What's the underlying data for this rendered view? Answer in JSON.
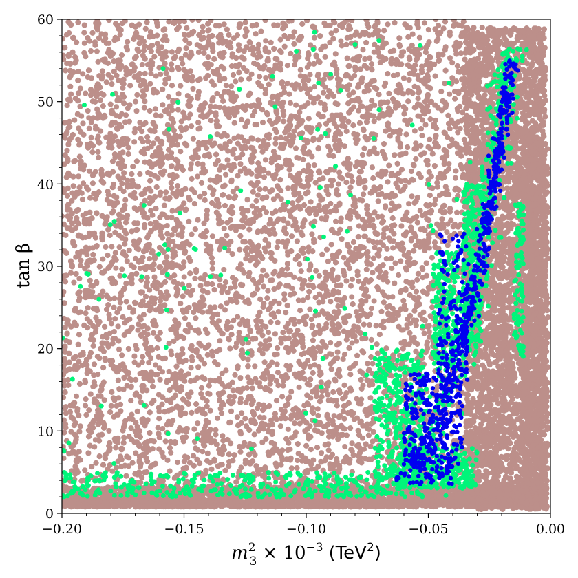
{
  "chart_data": {
    "type": "scatter",
    "title": "",
    "xlabel": {
      "main": "m",
      "sup": "2",
      "sub": "3",
      "times": "× 10",
      "exp": "−3",
      "unit_open": "(TeV",
      "unit_sup": "2",
      "unit_close": ")"
    },
    "ylabel": "tan β",
    "xlim": [
      -0.2,
      0.0
    ],
    "ylim": [
      0,
      60
    ],
    "x_ticks": [
      -0.2,
      -0.15,
      -0.1,
      -0.05,
      0.0
    ],
    "x_tick_labels": [
      "−0.20",
      "−0.15",
      "−0.10",
      "−0.05",
      "0.00"
    ],
    "y_ticks": [
      0,
      10,
      20,
      30,
      40,
      50,
      60
    ],
    "y_tick_labels": [
      "0",
      "10",
      "20",
      "30",
      "40",
      "50",
      "60"
    ],
    "grid": false,
    "legend": "none",
    "series": [
      {
        "color": "#bc8f8a",
        "layer": "background",
        "regions": [
          {
            "kind": "uniform",
            "x": [
              -0.2,
              -0.035
            ],
            "y": [
              3,
              60
            ],
            "count": 5200
          },
          {
            "kind": "band",
            "x": [
              -0.2,
              -0.002
            ],
            "y": [
              0.8,
              3.2
            ],
            "count": 2400
          },
          {
            "kind": "uniform",
            "x": [
              -0.035,
              -0.002
            ],
            "y": [
              0.5,
              59
            ],
            "count": 3800
          },
          {
            "kind": "uniform",
            "x": [
              -0.012,
              -0.001
            ],
            "y": [
              0.5,
              45
            ],
            "count": 900
          }
        ]
      },
      {
        "color": "#00f57a",
        "layer": "middle",
        "regions": [
          {
            "kind": "band",
            "x": [
              -0.2,
              -0.04
            ],
            "y": [
              2.0,
              5.0
            ],
            "count": 360
          },
          {
            "kind": "uniform",
            "x": [
              -0.2,
              -0.03
            ],
            "y": [
              5,
              60
            ],
            "count": 90
          },
          {
            "kind": "uniform",
            "x": [
              -0.072,
              -0.052
            ],
            "y": [
              4,
              20
            ],
            "count": 320
          },
          {
            "kind": "uniform",
            "x": [
              -0.062,
              -0.03
            ],
            "y": [
              3,
              8
            ],
            "count": 260
          },
          {
            "kind": "uniform",
            "x": [
              -0.048,
              -0.038
            ],
            "y": [
              18,
              32
            ],
            "count": 180
          },
          {
            "kind": "uniform",
            "x": [
              -0.036,
              -0.028
            ],
            "y": [
              20,
              40
            ],
            "count": 170
          },
          {
            "kind": "curve",
            "x": [
              -0.072,
              -0.016
            ],
            "ymax": 56.5,
            "width": 0.009,
            "count": 380
          },
          {
            "kind": "uniform",
            "x": [
              -0.015,
              -0.011
            ],
            "y": [
              18,
              38
            ],
            "count": 90
          }
        ]
      },
      {
        "color": "#0000f0",
        "layer": "top",
        "regions": [
          {
            "kind": "curve",
            "x": [
              -0.072,
              -0.016
            ],
            "ymax": 55,
            "width": 0.0045,
            "count": 430
          },
          {
            "kind": "uniform",
            "x": [
              -0.06,
              -0.036
            ],
            "y": [
              6,
              17
            ],
            "count": 220
          },
          {
            "kind": "uniform",
            "x": [
              -0.046,
              -0.034
            ],
            "y": [
              16,
              34
            ],
            "count": 110
          },
          {
            "kind": "uniform",
            "x": [
              -0.058,
              -0.04
            ],
            "y": [
              3.5,
              7
            ],
            "count": 60
          }
        ]
      }
    ]
  }
}
